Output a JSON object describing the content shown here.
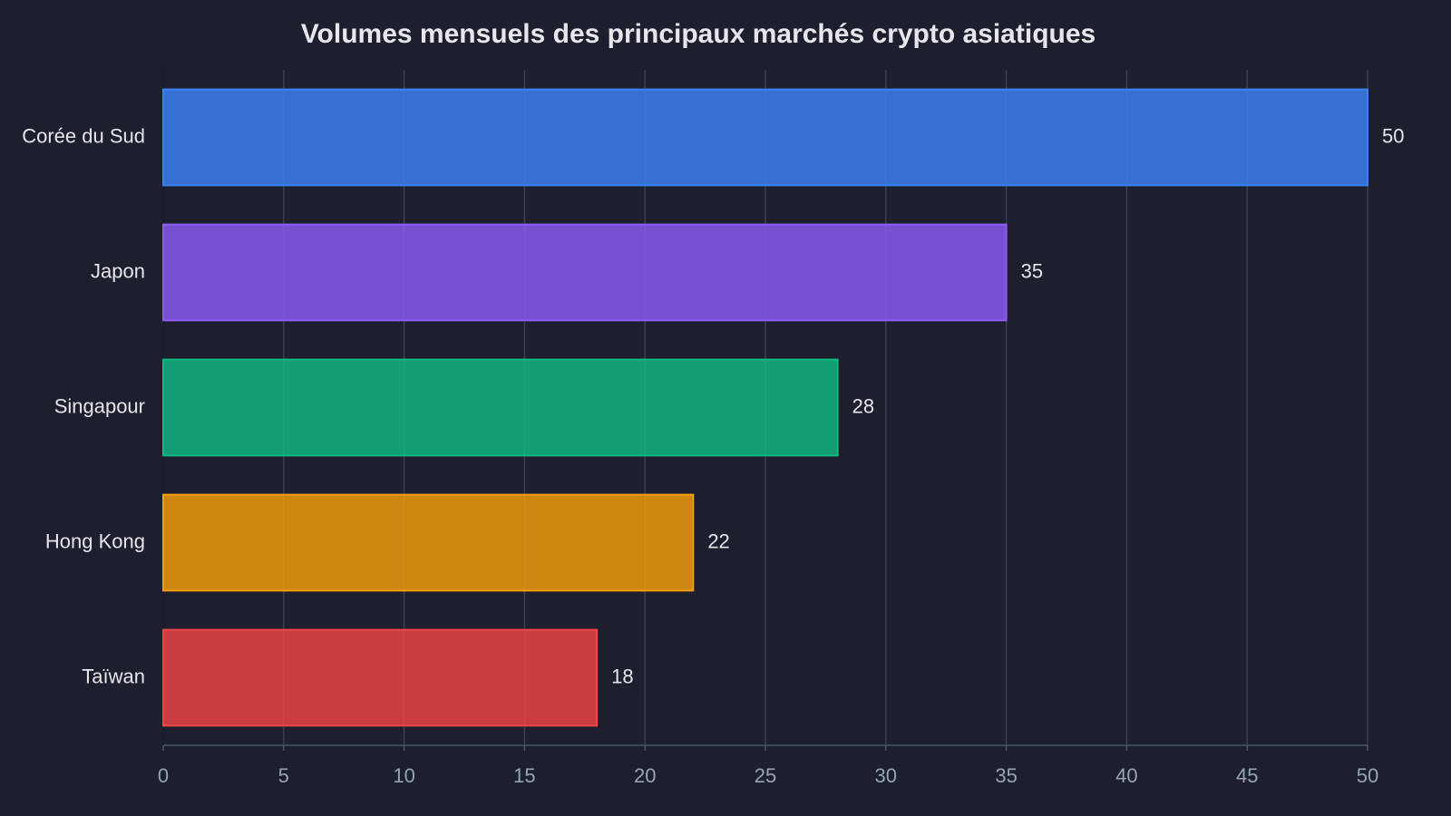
{
  "chart_data": {
    "type": "bar",
    "orientation": "horizontal",
    "title": "Volumes mensuels des principaux marchés crypto asiatiques",
    "categories": [
      "Corée du Sud",
      "Japon",
      "Singapour",
      "Hong Kong",
      "Taïwan"
    ],
    "values": [
      50,
      35,
      28,
      22,
      18
    ],
    "colors": [
      "#3b82f6",
      "#8b5cf6",
      "#10b981",
      "#f59e0b",
      "#ef4444"
    ],
    "xlim": [
      0,
      50
    ],
    "xticks": [
      0,
      5,
      10,
      15,
      20,
      25,
      30,
      35,
      40,
      45,
      50
    ],
    "grid": true
  }
}
